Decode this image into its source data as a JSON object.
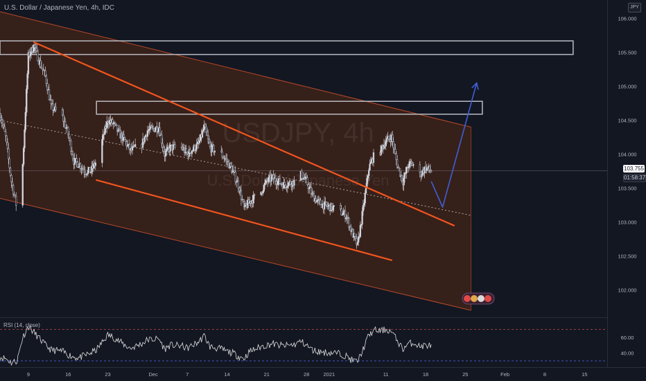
{
  "header": {
    "title": "U.S. Dollar / Japanese Yen, 4h, IDC",
    "currency": "JPY"
  },
  "watermark": {
    "symbol": "USDJPY, 4h",
    "description": "U.S. Dollar / Japanese Yen"
  },
  "price_tags": {
    "last_price": "103.755",
    "countdown": "01:58:37"
  },
  "rsi": {
    "label": "RSI (14, close)",
    "upper_band": 70,
    "lower_band": 30,
    "ticks": [
      "60.00",
      "40.00"
    ]
  },
  "colors": {
    "background": "#131722",
    "candle": "#d1d4dc",
    "channel_fill": "#3d2219",
    "channel_border": "#e8582c",
    "trendline": "#f2551e",
    "midline": "#c8c8c8",
    "projection": "#3f5fd6",
    "rsi_line": "#e0e0e0",
    "rsi_band_upper": "#c24a4a",
    "rsi_band_lower": "#4a5bd6",
    "resistance_box": "#b9bcc4"
  },
  "chart_data": {
    "type": "candlestick",
    "title": "U.S. Dollar / Japanese Yen, 4h, IDC",
    "xlabel": "",
    "ylabel": "",
    "ylim": [
      101.68,
      106.15
    ],
    "y_ticks": [
      "106.000",
      "105.500",
      "105.000",
      "104.500",
      "104.000",
      "103.500",
      "103.000",
      "102.500",
      "102.000"
    ],
    "x_ticks": [
      "9",
      "16",
      "23",
      "Dec",
      "7",
      "14",
      "21",
      "28",
      "2021",
      "11",
      "18",
      "25",
      "Feb",
      "8",
      "15"
    ],
    "x_tick_dates": [
      "2020-11-09",
      "2020-11-16",
      "2020-11-23",
      "2020-12-01",
      "2020-12-07",
      "2020-12-14",
      "2020-12-21",
      "2020-12-28",
      "2021-01-01",
      "2021-01-11",
      "2021-01-18",
      "2021-01-25",
      "2021-02-01",
      "2021-02-08",
      "2021-02-15"
    ],
    "x_range": [
      "2020-11-04",
      "2021-02-19"
    ],
    "price_path": [
      [
        "2020-11-04",
        104.6
      ],
      [
        "2020-11-05",
        104.25
      ],
      [
        "2020-11-06",
        103.6
      ],
      [
        "2020-11-07",
        103.2
      ],
      [
        "2020-11-08",
        103.85
      ],
      [
        "2020-11-09",
        105.45
      ],
      [
        "2020-11-10",
        105.6
      ],
      [
        "2020-11-11",
        105.35
      ],
      [
        "2020-11-12",
        105.15
      ],
      [
        "2020-11-13",
        104.7
      ],
      [
        "2020-11-15",
        104.55
      ],
      [
        "2020-11-16",
        104.3
      ],
      [
        "2020-11-17",
        103.9
      ],
      [
        "2020-11-18",
        103.85
      ],
      [
        "2020-11-19",
        103.75
      ],
      [
        "2020-11-20",
        103.75
      ],
      [
        "2020-11-21",
        103.9
      ],
      [
        "2020-11-23",
        104.5
      ],
      [
        "2020-11-24",
        104.45
      ],
      [
        "2020-11-25",
        104.3
      ],
      [
        "2020-11-26",
        104.2
      ],
      [
        "2020-11-27",
        104.05
      ],
      [
        "2020-11-29",
        104.15
      ],
      [
        "2020-11-30",
        104.35
      ],
      [
        "2020-12-02",
        104.4
      ],
      [
        "2020-12-03",
        104.0
      ],
      [
        "2020-12-04",
        104.1
      ],
      [
        "2020-12-06",
        104.1
      ],
      [
        "2020-12-07",
        104.0
      ],
      [
        "2020-12-09",
        104.15
      ],
      [
        "2020-12-10",
        104.4
      ],
      [
        "2020-12-11",
        104.1
      ],
      [
        "2020-12-13",
        104.0
      ],
      [
        "2020-12-14",
        103.9
      ],
      [
        "2020-12-15",
        103.75
      ],
      [
        "2020-12-16",
        103.55
      ],
      [
        "2020-12-17",
        103.2
      ],
      [
        "2020-12-18",
        103.3
      ],
      [
        "2020-12-20",
        103.45
      ],
      [
        "2020-12-21",
        103.6
      ],
      [
        "2020-12-22",
        103.65
      ],
      [
        "2020-12-23",
        103.6
      ],
      [
        "2020-12-24",
        103.55
      ],
      [
        "2020-12-26",
        103.6
      ],
      [
        "2020-12-27",
        103.7
      ],
      [
        "2020-12-28",
        103.6
      ],
      [
        "2020-12-29",
        103.4
      ],
      [
        "2020-12-30",
        103.3
      ],
      [
        "2020-12-31",
        103.25
      ],
      [
        "2021-01-02",
        103.2
      ],
      [
        "2021-01-03",
        103.15
      ],
      [
        "2021-01-04",
        103.1
      ],
      [
        "2021-01-05",
        102.85
      ],
      [
        "2021-01-06",
        102.65
      ],
      [
        "2021-01-07",
        103.2
      ],
      [
        "2021-01-08",
        103.8
      ],
      [
        "2021-01-09",
        104.0
      ],
      [
        "2021-01-10",
        104.05
      ],
      [
        "2021-01-11",
        104.2
      ],
      [
        "2021-01-12",
        104.25
      ],
      [
        "2021-01-13",
        103.85
      ],
      [
        "2021-01-14",
        103.6
      ],
      [
        "2021-01-15",
        103.85
      ],
      [
        "2021-01-16",
        103.85
      ],
      [
        "2021-01-17",
        103.7
      ],
      [
        "2021-01-18",
        103.8
      ],
      [
        "2021-01-19",
        103.755
      ]
    ],
    "channel": {
      "upper": [
        [
          "2020-11-04",
          106.1
        ],
        [
          "2021-01-26",
          104.4
        ]
      ],
      "lower": [
        [
          "2020-11-04",
          103.35
        ],
        [
          "2021-01-26",
          101.7
        ]
      ],
      "midline": [
        [
          "2020-11-04",
          104.5
        ],
        [
          "2021-01-26",
          103.1
        ]
      ]
    },
    "trendlines": [
      {
        "name": "",
        "points": [
          [
            "2020-11-10",
            105.65
          ],
          [
            "2021-01-23",
            102.95
          ]
        ]
      },
      {
        "name": "",
        "points": [
          [
            "2020-11-21",
            103.62
          ],
          [
            "2021-01-12",
            102.44
          ]
        ]
      }
    ],
    "projection": [
      [
        "2021-01-19",
        103.6
      ],
      [
        "2021-01-21",
        103.22
      ],
      [
        "2021-01-27",
        105.05
      ]
    ],
    "resistance_zones": [
      {
        "from": "2020-11-04",
        "to": "2021-02-13",
        "low": 105.47,
        "high": 105.67
      },
      {
        "from": "2020-11-21",
        "to": "2021-01-28",
        "low": 104.59,
        "high": 104.78
      }
    ],
    "last_price": 103.755,
    "grid": false,
    "rsi": {
      "ylim": [
        22,
        82
      ],
      "bands": [
        70,
        30
      ],
      "path": [
        [
          "2020-11-04",
          35
        ],
        [
          "2020-11-05",
          33
        ],
        [
          "2020-11-06",
          28
        ],
        [
          "2020-11-07",
          30
        ],
        [
          "2020-11-08",
          60
        ],
        [
          "2020-11-09",
          74
        ],
        [
          "2020-11-10",
          66
        ],
        [
          "2020-11-11",
          58
        ],
        [
          "2020-11-12",
          50
        ],
        [
          "2020-11-13",
          44
        ],
        [
          "2020-11-15",
          42
        ],
        [
          "2020-11-16",
          38
        ],
        [
          "2020-11-17",
          35
        ],
        [
          "2020-11-18",
          34
        ],
        [
          "2020-11-19",
          37
        ],
        [
          "2020-11-20",
          40
        ],
        [
          "2020-11-21",
          44
        ],
        [
          "2020-11-23",
          63
        ],
        [
          "2020-11-24",
          60
        ],
        [
          "2020-11-25",
          55
        ],
        [
          "2020-11-26",
          50
        ],
        [
          "2020-11-27",
          46
        ],
        [
          "2020-11-29",
          52
        ],
        [
          "2020-11-30",
          57
        ],
        [
          "2020-12-02",
          58
        ],
        [
          "2020-12-03",
          45
        ],
        [
          "2020-12-04",
          50
        ],
        [
          "2020-12-06",
          49
        ],
        [
          "2020-12-07",
          46
        ],
        [
          "2020-12-09",
          54
        ],
        [
          "2020-12-10",
          62
        ],
        [
          "2020-12-11",
          48
        ],
        [
          "2020-12-13",
          45
        ],
        [
          "2020-12-14",
          42
        ],
        [
          "2020-12-15",
          40
        ],
        [
          "2020-12-16",
          36
        ],
        [
          "2020-12-17",
          33
        ],
        [
          "2020-12-18",
          42
        ],
        [
          "2020-12-20",
          48
        ],
        [
          "2020-12-21",
          50
        ],
        [
          "2020-12-22",
          52
        ],
        [
          "2020-12-23",
          50
        ],
        [
          "2020-12-24",
          49
        ],
        [
          "2020-12-26",
          51
        ],
        [
          "2020-12-27",
          55
        ],
        [
          "2020-12-28",
          50
        ],
        [
          "2020-12-29",
          44
        ],
        [
          "2020-12-30",
          42
        ],
        [
          "2020-12-31",
          41
        ],
        [
          "2021-01-02",
          40
        ],
        [
          "2021-01-03",
          39
        ],
        [
          "2021-01-04",
          36
        ],
        [
          "2021-01-05",
          31
        ],
        [
          "2021-01-06",
          29
        ],
        [
          "2021-01-07",
          45
        ],
        [
          "2021-01-08",
          63
        ],
        [
          "2021-01-09",
          69
        ],
        [
          "2021-01-10",
          68
        ],
        [
          "2021-01-11",
          70
        ],
        [
          "2021-01-12",
          67
        ],
        [
          "2021-01-13",
          56
        ],
        [
          "2021-01-14",
          45
        ],
        [
          "2021-01-15",
          52
        ],
        [
          "2021-01-16",
          53
        ],
        [
          "2021-01-17",
          48
        ],
        [
          "2021-01-18",
          50
        ],
        [
          "2021-01-19",
          49
        ]
      ]
    }
  }
}
